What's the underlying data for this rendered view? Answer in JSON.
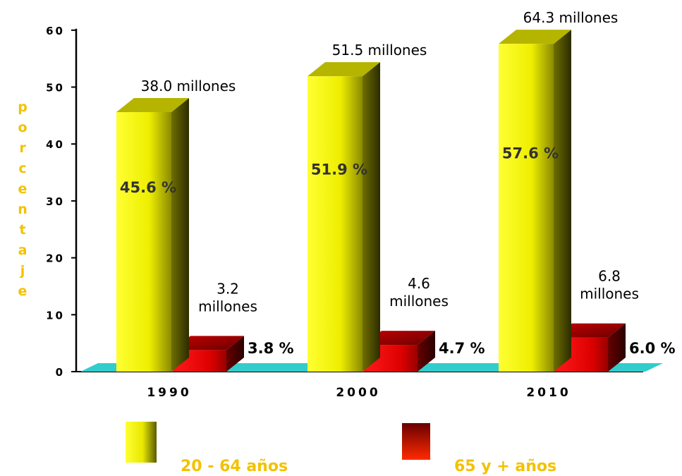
{
  "chart_data": {
    "type": "bar",
    "style": "3d-column",
    "ylabel": "Porcentaje",
    "ylim": [
      0,
      60
    ],
    "yticks": [
      0,
      10,
      20,
      30,
      40,
      50,
      60
    ],
    "categories": [
      "1990",
      "2000",
      "2010"
    ],
    "series": [
      {
        "name": "20 - 64 años",
        "values": [
          45.6,
          51.9,
          57.6
        ],
        "value_labels": [
          "45.6 %",
          "51.9 %",
          "57.6 %"
        ],
        "population_labels": [
          "38.0 millones",
          "51.5 millones",
          "64.3 millones"
        ],
        "color": "#f5f500"
      },
      {
        "name": "65 y + años",
        "values": [
          3.8,
          4.7,
          6.0
        ],
        "value_labels": [
          "3.8 %",
          "4.7 %",
          "6.0 %"
        ],
        "population_labels": [
          "3.2 millones",
          "4.6 millones",
          "6.8 millones"
        ],
        "color": "#e00000"
      }
    ],
    "legend_position": "bottom",
    "label_color": "#f2c200",
    "floor_color": "#33cccc"
  }
}
